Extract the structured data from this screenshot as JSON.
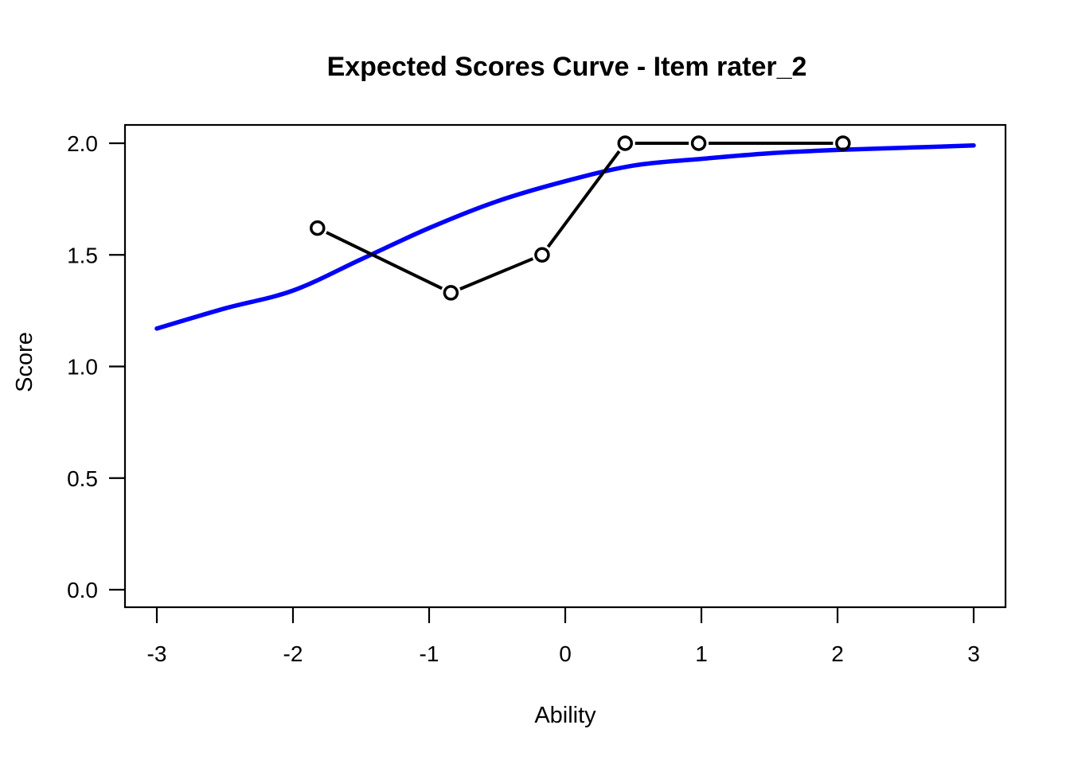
{
  "page": {
    "background": "#ffffff",
    "plot_background": "#ffffff"
  },
  "colors": {
    "expected_curve": "#0000ff",
    "observed_line": "#000000",
    "axis": "#000000",
    "text": "#000000"
  },
  "chart_data": {
    "type": "line",
    "title": "Expected Scores Curve - Item  rater_2",
    "xlabel": "Ability",
    "ylabel": "Score",
    "xlim": [
      -3,
      3
    ],
    "ylim": [
      0,
      2
    ],
    "grid": false,
    "legend": "none",
    "box": true,
    "x_ticks": {
      "values": [
        -3,
        -2,
        -1,
        0,
        1,
        2,
        3
      ],
      "labels": [
        "-3",
        "-2",
        "-1",
        "0",
        "1",
        "2",
        "3"
      ]
    },
    "y_ticks": {
      "values": [
        0,
        0.5,
        1,
        1.5,
        2
      ],
      "labels": [
        "0.0",
        "0.5",
        "1.0",
        "1.5",
        "2.0"
      ]
    },
    "series": [
      {
        "name": "expected-score-curve",
        "type": "smooth-line",
        "color": "#0000ff",
        "line_width": 5.5,
        "marker": "none",
        "x": [
          -3.0,
          -2.5,
          -2.0,
          -1.5,
          -1.0,
          -0.5,
          0.0,
          0.5,
          1.0,
          1.5,
          2.0,
          2.5,
          3.0
        ],
        "y": [
          1.17,
          1.26,
          1.34,
          1.48,
          1.62,
          1.74,
          1.83,
          1.9,
          1.93,
          1.955,
          1.97,
          1.98,
          1.99
        ]
      },
      {
        "name": "observed-scores",
        "type": "segmented-line-with-points",
        "color": "#000000",
        "line_width": 4,
        "marker": "open-circle",
        "marker_radius": 8,
        "x": [
          -1.82,
          -0.84,
          -0.17,
          0.44,
          0.98,
          2.04
        ],
        "y": [
          1.62,
          1.33,
          1.5,
          2.0,
          2.0,
          2.0
        ]
      }
    ]
  }
}
